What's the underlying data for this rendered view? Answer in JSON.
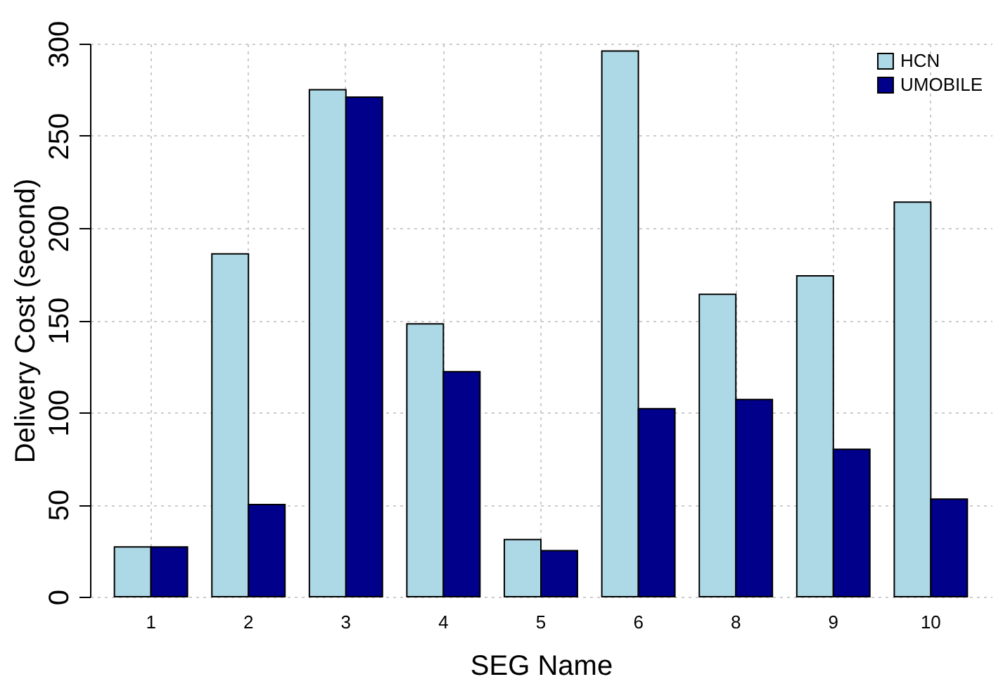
{
  "chart_data": {
    "type": "bar",
    "xlabel": "SEG Name",
    "ylabel": "Delivery Cost (second)",
    "categories": [
      "1",
      "2",
      "3",
      "4",
      "5",
      "6",
      "8",
      "9",
      "10"
    ],
    "series": [
      {
        "name": "HCN",
        "color": "#add8e6",
        "values": [
          27,
          186,
          275,
          148,
          31,
          296,
          164,
          174,
          214
        ]
      },
      {
        "name": "UMOBILE",
        "color": "#00008b",
        "values": [
          27,
          50,
          271,
          122,
          25,
          102,
          107,
          80,
          53
        ]
      }
    ],
    "ylim": [
      0,
      300
    ],
    "yticks": [
      0,
      50,
      100,
      150,
      200,
      250,
      300
    ],
    "grid": true,
    "legend": "top right"
  }
}
